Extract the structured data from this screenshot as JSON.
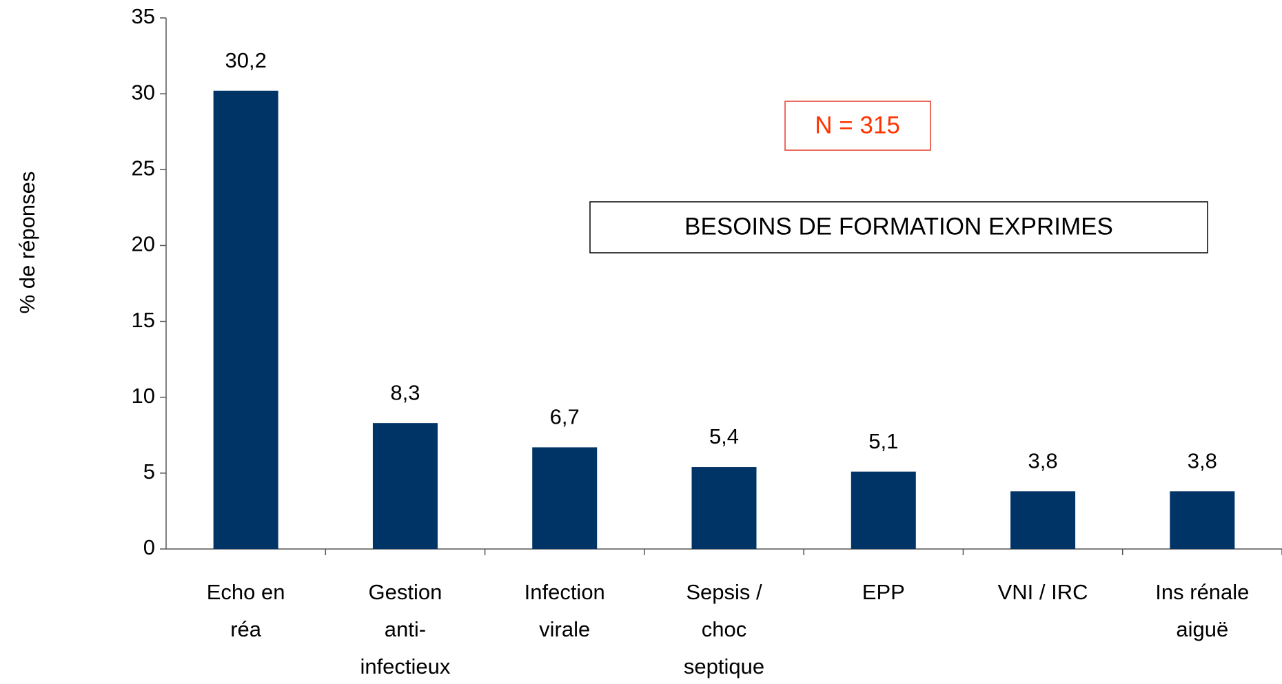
{
  "chart_data": {
    "type": "bar",
    "y_label": "% de réponses",
    "annotations": [
      "N = 315",
      "BESOINS DE FORMATION EXPRIMES"
    ],
    "categories": [
      [
        "Echo en",
        "réa"
      ],
      [
        "Gestion",
        "anti-",
        "infectieux"
      ],
      [
        "Infection",
        "virale"
      ],
      [
        "Sepsis /",
        "choc",
        "septique"
      ],
      [
        "EPP"
      ],
      [
        "VNI / IRC"
      ],
      [
        "Ins rénale",
        "aiguë"
      ]
    ],
    "values": [
      30.2,
      8.3,
      6.7,
      5.4,
      5.1,
      3.8,
      3.8
    ],
    "value_labels": [
      "30,2",
      "8,3",
      "6,7",
      "5,4",
      "5,1",
      "3,8",
      "3,8"
    ],
    "color": "#003366",
    "ylim": [
      0,
      35
    ],
    "yticks": [
      0,
      5,
      10,
      15,
      20,
      25,
      30,
      35
    ]
  }
}
